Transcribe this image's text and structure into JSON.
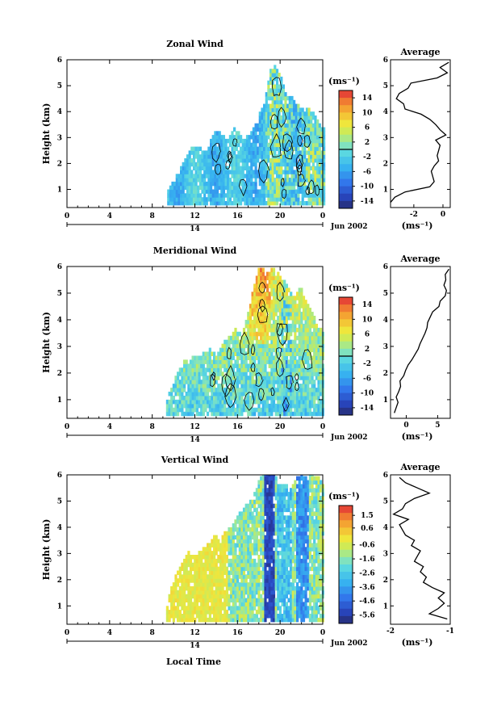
{
  "page": {
    "x_axis_title": "Local Time",
    "date_label": "Jun 2002",
    "day_label": "14"
  },
  "chart_data": [
    {
      "type": "heatmap",
      "title": "Zonal Wind",
      "ylabel": "Height (km)",
      "xlabel": "Local Time",
      "x_ticks": [
        "0",
        "4",
        "8",
        "12",
        "16",
        "20",
        "0"
      ],
      "x_range_hours": [
        0,
        24
      ],
      "y_ticks": [
        "1",
        "2",
        "3",
        "4",
        "5",
        "6"
      ],
      "ylim_km": [
        0.3,
        6.0
      ],
      "colorbar": {
        "unit": "(ms⁻¹)",
        "ticks": [
          "14",
          "10",
          "6",
          "2",
          "-2",
          "-6",
          "-10",
          "-14"
        ],
        "range": [
          -16,
          16
        ],
        "line_at": 0
      },
      "coverage": [
        {
          "hour": 9.4,
          "top_km": 0.9
        },
        {
          "hour": 10.0,
          "top_km": 1.3
        },
        {
          "hour": 10.5,
          "top_km": 1.7
        },
        {
          "hour": 11.0,
          "top_km": 2.1
        },
        {
          "hour": 11.5,
          "top_km": 2.5
        },
        {
          "hour": 12.0,
          "top_km": 2.6
        },
        {
          "hour": 12.5,
          "top_km": 2.5
        },
        {
          "hour": 13.0,
          "top_km": 2.4
        },
        {
          "hour": 13.5,
          "top_km": 3.0
        },
        {
          "hour": 14.0,
          "top_km": 3.2
        },
        {
          "hour": 14.5,
          "top_km": 3.0
        },
        {
          "hour": 15.0,
          "top_km": 2.8
        },
        {
          "hour": 15.5,
          "top_km": 3.3
        },
        {
          "hour": 16.0,
          "top_km": 3.1
        },
        {
          "hour": 16.5,
          "top_km": 2.9
        },
        {
          "hour": 17.0,
          "top_km": 3.0
        },
        {
          "hour": 17.5,
          "top_km": 3.4
        },
        {
          "hour": 18.0,
          "top_km": 3.9
        },
        {
          "hour": 18.5,
          "top_km": 4.4
        },
        {
          "hour": 19.0,
          "top_km": 5.6
        },
        {
          "hour": 19.5,
          "top_km": 5.7
        },
        {
          "hour": 20.0,
          "top_km": 5.2
        },
        {
          "hour": 20.5,
          "top_km": 4.5
        },
        {
          "hour": 21.0,
          "top_km": 4.6
        },
        {
          "hour": 21.5,
          "top_km": 4.2
        },
        {
          "hour": 22.0,
          "top_km": 4.1
        },
        {
          "hour": 22.5,
          "top_km": 4.1
        },
        {
          "hour": 23.0,
          "top_km": 3.9
        },
        {
          "hour": 23.5,
          "top_km": 3.6
        },
        {
          "hour": 24.0,
          "top_km": 3.3
        }
      ],
      "profile": {
        "title": "Average",
        "xlabel": "(ms⁻¹)",
        "x_ticks": [
          "-2",
          "0"
        ],
        "xlim": [
          -3.6,
          0.5
        ],
        "heights_km": [
          0.5,
          0.7,
          0.9,
          1.1,
          1.3,
          1.5,
          1.7,
          1.9,
          2.1,
          2.3,
          2.5,
          2.7,
          2.9,
          3.1,
          3.3,
          3.5,
          3.7,
          3.9,
          4.1,
          4.3,
          4.5,
          4.7,
          4.9,
          5.1,
          5.3,
          5.5,
          5.7,
          5.9
        ],
        "values": [
          -3.6,
          -3.3,
          -2.6,
          -0.9,
          -0.6,
          -0.7,
          -0.8,
          -0.6,
          -0.3,
          -0.4,
          -0.3,
          -0.2,
          -0.5,
          0.2,
          -0.2,
          -0.5,
          -0.9,
          -1.5,
          -2.6,
          -2.7,
          -3.2,
          -3.0,
          -2.4,
          -2.2,
          -0.4,
          0.3,
          -0.2,
          0.4
        ]
      }
    },
    {
      "type": "heatmap",
      "title": "Meridional Wind",
      "ylabel": "Height (km)",
      "xlabel": "Local Time",
      "x_ticks": [
        "0",
        "4",
        "8",
        "12",
        "16",
        "20",
        "0"
      ],
      "x_range_hours": [
        0,
        24
      ],
      "y_ticks": [
        "1",
        "2",
        "3",
        "4",
        "5",
        "6"
      ],
      "ylim_km": [
        0.3,
        6.0
      ],
      "colorbar": {
        "unit": "(ms⁻¹)",
        "ticks": [
          "14",
          "10",
          "6",
          "2",
          "-2",
          "-6",
          "-10",
          "-14"
        ],
        "range": [
          -16,
          16
        ],
        "line_at": 0
      },
      "coverage": [
        {
          "hour": 9.3,
          "top_km": 1.0
        },
        {
          "hour": 9.8,
          "top_km": 1.5
        },
        {
          "hour": 10.3,
          "top_km": 2.0
        },
        {
          "hour": 10.8,
          "top_km": 2.4
        },
        {
          "hour": 11.3,
          "top_km": 2.4
        },
        {
          "hour": 11.8,
          "top_km": 2.6
        },
        {
          "hour": 12.3,
          "top_km": 2.5
        },
        {
          "hour": 12.8,
          "top_km": 2.7
        },
        {
          "hour": 13.3,
          "top_km": 2.9
        },
        {
          "hour": 13.8,
          "top_km": 2.6
        },
        {
          "hour": 14.3,
          "top_km": 2.9
        },
        {
          "hour": 14.8,
          "top_km": 3.2
        },
        {
          "hour": 15.3,
          "top_km": 3.4
        },
        {
          "hour": 15.8,
          "top_km": 3.6
        },
        {
          "hour": 16.3,
          "top_km": 3.3
        },
        {
          "hour": 16.8,
          "top_km": 4.0
        },
        {
          "hour": 17.3,
          "top_km": 5.0
        },
        {
          "hour": 17.8,
          "top_km": 5.8
        },
        {
          "hour": 18.3,
          "top_km": 5.9
        },
        {
          "hour": 18.8,
          "top_km": 5.7
        },
        {
          "hour": 19.3,
          "top_km": 5.9
        },
        {
          "hour": 19.8,
          "top_km": 5.6
        },
        {
          "hour": 20.3,
          "top_km": 5.4
        },
        {
          "hour": 20.8,
          "top_km": 5.0
        },
        {
          "hour": 21.3,
          "top_km": 4.8
        },
        {
          "hour": 21.8,
          "top_km": 5.2
        },
        {
          "hour": 22.3,
          "top_km": 4.6
        },
        {
          "hour": 22.8,
          "top_km": 4.4
        },
        {
          "hour": 23.3,
          "top_km": 3.8
        },
        {
          "hour": 24.0,
          "top_km": 3.4
        }
      ],
      "profile": {
        "title": "Average",
        "xlabel": "(ms⁻¹)",
        "x_ticks": [
          "0",
          "5"
        ],
        "xlim": [
          -2.5,
          7.0
        ],
        "heights_km": [
          0.5,
          0.7,
          0.9,
          1.1,
          1.3,
          1.5,
          1.7,
          1.9,
          2.1,
          2.3,
          2.5,
          2.7,
          2.9,
          3.1,
          3.3,
          3.5,
          3.7,
          3.9,
          4.1,
          4.3,
          4.5,
          4.7,
          4.9,
          5.1,
          5.3,
          5.5,
          5.7,
          5.9
        ],
        "values": [
          -1.9,
          -1.6,
          -1.3,
          -1.6,
          -1.2,
          -0.9,
          -1.0,
          -0.4,
          -0.1,
          0.3,
          0.9,
          1.4,
          1.9,
          2.2,
          2.6,
          3.0,
          3.3,
          3.4,
          3.8,
          4.2,
          5.2,
          5.4,
          6.2,
          6.4,
          6.0,
          6.3,
          6.2,
          6.8
        ]
      }
    },
    {
      "type": "heatmap",
      "title": "Vertical Wind",
      "ylabel": "Height (km)",
      "xlabel": "Local Time",
      "x_ticks": [
        "0",
        "4",
        "8",
        "12",
        "16",
        "20",
        "0"
      ],
      "x_range_hours": [
        0,
        24
      ],
      "y_ticks": [
        "1",
        "2",
        "3",
        "4",
        "5",
        "6"
      ],
      "ylim_km": [
        0.3,
        6.0
      ],
      "colorbar": {
        "unit": "(ms⁻¹)",
        "ticks": [
          "1.5",
          "0.6",
          "-0.6",
          "-1.6",
          "-2.6",
          "-3.6",
          "-4.6",
          "-5.6"
        ],
        "range": [
          -6.2,
          2.2
        ]
      },
      "coverage": [
        {
          "hour": 9.3,
          "top_km": 1.0
        },
        {
          "hour": 9.8,
          "top_km": 1.8
        },
        {
          "hour": 10.3,
          "top_km": 2.3
        },
        {
          "hour": 10.8,
          "top_km": 2.6
        },
        {
          "hour": 11.3,
          "top_km": 3.0
        },
        {
          "hour": 11.8,
          "top_km": 2.8
        },
        {
          "hour": 12.3,
          "top_km": 3.0
        },
        {
          "hour": 12.8,
          "top_km": 3.2
        },
        {
          "hour": 13.3,
          "top_km": 3.4
        },
        {
          "hour": 13.8,
          "top_km": 3.6
        },
        {
          "hour": 14.3,
          "top_km": 3.5
        },
        {
          "hour": 14.8,
          "top_km": 3.8
        },
        {
          "hour": 15.3,
          "top_km": 4.0
        },
        {
          "hour": 15.8,
          "top_km": 4.3
        },
        {
          "hour": 16.3,
          "top_km": 4.6
        },
        {
          "hour": 16.8,
          "top_km": 4.8
        },
        {
          "hour": 17.3,
          "top_km": 5.0
        },
        {
          "hour": 17.8,
          "top_km": 5.6
        },
        {
          "hour": 18.3,
          "top_km": 6.0
        },
        {
          "hour": 18.8,
          "top_km": 6.0
        },
        {
          "hour": 19.3,
          "top_km": 6.0
        },
        {
          "hour": 19.8,
          "top_km": 5.5
        },
        {
          "hour": 20.3,
          "top_km": 5.6
        },
        {
          "hour": 20.8,
          "top_km": 5.4
        },
        {
          "hour": 21.3,
          "top_km": 5.7
        },
        {
          "hour": 21.8,
          "top_km": 6.0
        },
        {
          "hour": 22.3,
          "top_km": 5.8
        },
        {
          "hour": 22.8,
          "top_km": 6.0
        },
        {
          "hour": 23.3,
          "top_km": 5.9
        },
        {
          "hour": 24.0,
          "top_km": 5.7
        }
      ],
      "profile": {
        "title": "Average",
        "xlabel": "(ms⁻¹)",
        "x_ticks": [
          "-2",
          "-1"
        ],
        "xlim": [
          -2.0,
          -1.0
        ],
        "heights_km": [
          0.5,
          0.7,
          0.9,
          1.1,
          1.3,
          1.5,
          1.7,
          1.9,
          2.1,
          2.3,
          2.5,
          2.7,
          2.9,
          3.1,
          3.3,
          3.5,
          3.7,
          3.9,
          4.1,
          4.3,
          4.5,
          4.7,
          4.9,
          5.1,
          5.3,
          5.5,
          5.7,
          5.9
        ],
        "values": [
          -1.05,
          -1.35,
          -1.2,
          -1.1,
          -1.2,
          -1.1,
          -1.3,
          -1.45,
          -1.4,
          -1.5,
          -1.45,
          -1.6,
          -1.55,
          -1.5,
          -1.65,
          -1.6,
          -1.75,
          -1.8,
          -1.85,
          -1.7,
          -1.95,
          -1.8,
          -1.75,
          -1.6,
          -1.35,
          -1.55,
          -1.75,
          -1.85
        ]
      }
    }
  ]
}
